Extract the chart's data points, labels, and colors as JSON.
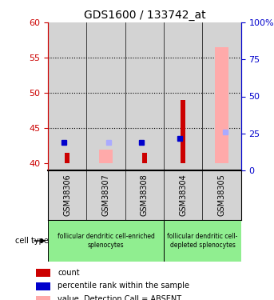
{
  "title": "GDS1600 / 133742_at",
  "samples": [
    "GSM38306",
    "GSM38307",
    "GSM38308",
    "GSM38304",
    "GSM38305"
  ],
  "ylim_left": [
    39,
    60
  ],
  "ylim_right": [
    0,
    100
  ],
  "yticks_left": [
    40,
    45,
    50,
    55,
    60
  ],
  "yticks_right": [
    0,
    25,
    50,
    75,
    100
  ],
  "count_values": [
    41.5,
    null,
    41.5,
    49.0,
    null
  ],
  "rank_values": [
    43.0,
    null,
    43.0,
    43.5,
    null
  ],
  "value_absent": [
    null,
    42.0,
    null,
    null,
    56.5
  ],
  "rank_absent": [
    null,
    43.0,
    null,
    null,
    44.5
  ],
  "bar_bottom": 40,
  "count_color": "#cc0000",
  "rank_color": "#0000cc",
  "value_absent_color": "#ffaaaa",
  "rank_absent_color": "#aaaaff",
  "groups": [
    {
      "label": "follicular dendritic cell-enriched\nsplenocytes",
      "samples_idx": [
        0,
        1,
        2
      ]
    },
    {
      "label": "follicular dendritic cell-\ndepleted splenocytes",
      "samples_idx": [
        3,
        4
      ]
    }
  ],
  "bg_color": "#d3d3d3",
  "group_bg": "#90ee90",
  "dotted_yticks": [
    45,
    50,
    55
  ],
  "legend_items": [
    {
      "label": "count",
      "color": "#cc0000"
    },
    {
      "label": "percentile rank within the sample",
      "color": "#0000cc"
    },
    {
      "label": "value, Detection Call = ABSENT",
      "color": "#ffaaaa"
    },
    {
      "label": "rank, Detection Call = ABSENT",
      "color": "#aaaaff"
    }
  ]
}
